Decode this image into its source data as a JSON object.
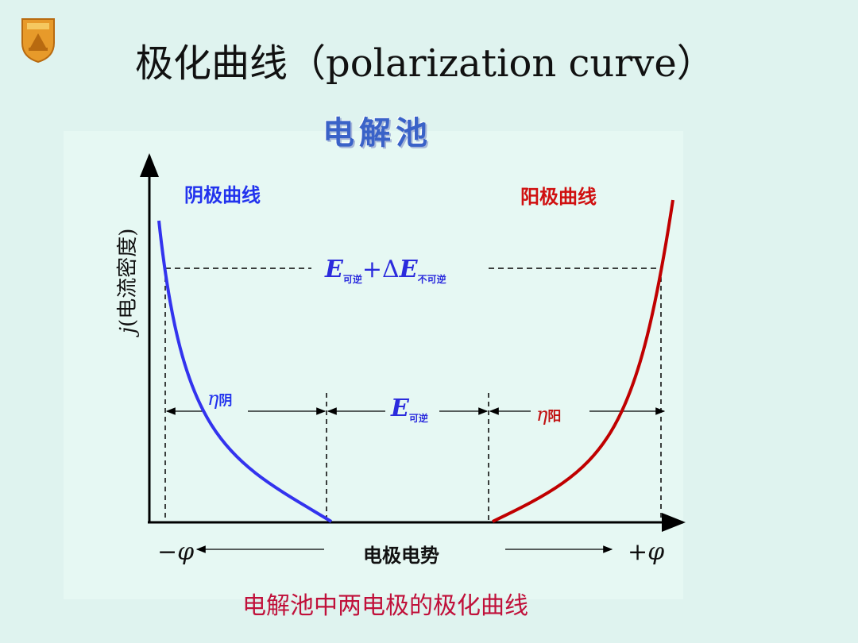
{
  "title": "极化曲线（polarization curve）",
  "subtitle": "电解池",
  "labels": {
    "cathode_curve": "阴极曲线",
    "anode_curve": "阳极曲线",
    "y_axis_var": "j",
    "y_axis_text": "(电流密度)",
    "x_axis": "电极电势",
    "neg_phi_sign": "−",
    "pos_phi_sign": "+",
    "phi": "φ",
    "caption": "电解池中两电极的极化曲线"
  },
  "equation_total": {
    "E1": "E",
    "sub1": "可逆",
    "plus": "+",
    "delta": "Δ",
    "E2": "E",
    "sub2": "不可逆"
  },
  "equation_rev": {
    "E": "E",
    "sub": "可逆"
  },
  "eta_cathode": {
    "symbol": "η",
    "sub": "阴"
  },
  "eta_anode": {
    "symbol": "η",
    "sub": "阳"
  },
  "colors": {
    "cathode": "#3333ee",
    "anode": "#c00000",
    "subtitle": "#3a62c8",
    "caption": "#c0103a"
  }
}
